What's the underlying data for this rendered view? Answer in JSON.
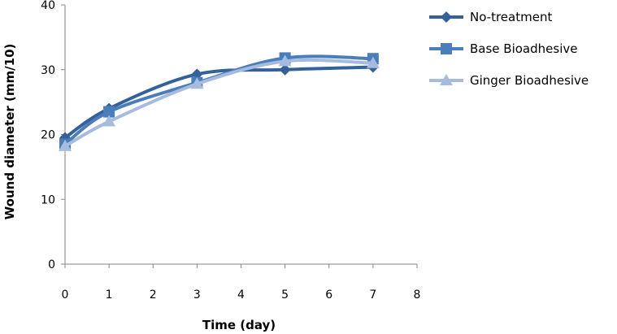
{
  "chart_data": {
    "type": "line",
    "title": "",
    "xlabel": "Time (day)",
    "ylabel": "Wound diameter (mm/10)",
    "xlim": [
      0,
      8
    ],
    "ylim": [
      0,
      40
    ],
    "xticks": [
      0,
      1,
      2,
      3,
      4,
      5,
      6,
      7,
      8
    ],
    "yticks": [
      0,
      10,
      20,
      30,
      40
    ],
    "grid": false,
    "legend_position": "top-right",
    "x": [
      0,
      1,
      3,
      5,
      7
    ],
    "series": [
      {
        "name": "No-treatment",
        "values": [
          19.5,
          24.0,
          29.3,
          30.0,
          30.4
        ],
        "color": "#35619B",
        "marker": "diamond"
      },
      {
        "name": "Base Bioadhesive",
        "values": [
          18.5,
          23.5,
          28.0,
          31.8,
          31.7
        ],
        "color": "#4A7EBB",
        "marker": "square"
      },
      {
        "name": "Ginger Bioadhesive",
        "values": [
          18.2,
          22.0,
          27.8,
          31.3,
          31.0
        ],
        "color": "#A6BBDD",
        "marker": "triangle"
      }
    ]
  }
}
